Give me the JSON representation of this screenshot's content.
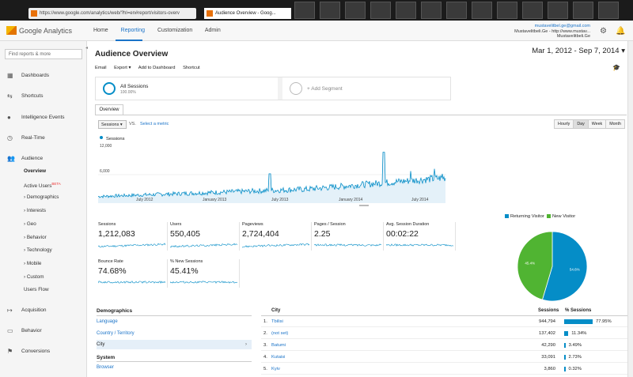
{
  "browser": {
    "url": "https://www.google.com/analytics/web/?hl=en#report/visitors-overv",
    "tab_title": "Audience Overview - Goog...",
    "favicon_color": "#e8710a"
  },
  "header": {
    "logo": "Google Analytics",
    "nav": [
      "Home",
      "Reporting",
      "Customization",
      "Admin"
    ],
    "active_nav": "Reporting",
    "account_email": "mustavelitbel.ge@gmail.com",
    "account_site": "Mustavelitbeli.Ge - http://www.mustav...",
    "account_view": "Mustavelitbeli.Ge",
    "icons": [
      "gear-icon",
      "bell-icon"
    ]
  },
  "sidebar": {
    "search_placeholder": "Find reports & more",
    "items": [
      {
        "label": "Dashboards",
        "icon": "grid-icon"
      },
      {
        "label": "Shortcuts",
        "icon": "arrows-icon"
      },
      {
        "label": "Intelligence Events",
        "icon": "bulb-icon"
      },
      {
        "label": "Real-Time",
        "icon": "clock-icon"
      },
      {
        "label": "Audience",
        "icon": "people-icon"
      }
    ],
    "audience_sub": [
      {
        "label": "Overview"
      },
      {
        "label": "Active Users",
        "badge": "BETA"
      },
      {
        "label": "› Demographics"
      },
      {
        "label": "› Interests"
      },
      {
        "label": "› Geo"
      },
      {
        "label": "› Behavior"
      },
      {
        "label": "› Technology"
      },
      {
        "label": "› Mobile"
      },
      {
        "label": "› Custom"
      },
      {
        "label": "Users Flow"
      }
    ],
    "bottom_items": [
      {
        "label": "Acquisition",
        "icon": "acquisition-icon"
      },
      {
        "label": "Behavior",
        "icon": "behavior-icon"
      },
      {
        "label": "Conversions",
        "icon": "flag-icon"
      }
    ]
  },
  "main": {
    "title": "Audience Overview",
    "date_range": "Mar 1, 2012 - Sep 7, 2014",
    "actions": [
      "Email",
      "Export ▾",
      "Add to Dashboard",
      "Shortcut"
    ],
    "segments": {
      "primary_label": "All Sessions",
      "primary_sub": "100.00%",
      "add_label": "+ Add Segment"
    },
    "tab": "Overview",
    "metric_select": "Sessions ▾",
    "vs_label": "VS.",
    "select_metric": "Select a metric",
    "granularity": [
      "Hourly",
      "Day",
      "Week",
      "Month"
    ],
    "granularity_active": "Day"
  },
  "chart_data": {
    "type": "line",
    "series": [
      {
        "name": "Sessions"
      }
    ],
    "y_ticks": [
      "12,000",
      "6,000"
    ],
    "ylim": [
      0,
      12000
    ],
    "x_ticks": [
      "July 2012",
      "January 2013",
      "July 2013",
      "January 2014",
      "July 2014"
    ],
    "color": "#058dc7"
  },
  "scorecards": [
    {
      "label": "Sessions",
      "value": "1,212,083"
    },
    {
      "label": "Users",
      "value": "550,405"
    },
    {
      "label": "Pageviews",
      "value": "2,724,404"
    },
    {
      "label": "Pages / Session",
      "value": "2.25"
    },
    {
      "label": "Avg. Session Duration",
      "value": "00:02:22"
    },
    {
      "label": "Bounce Rate",
      "value": "74.68%"
    },
    {
      "label": "% New Sessions",
      "value": "45.41%"
    }
  ],
  "pie": {
    "legend": [
      {
        "label": "Returning Visitor",
        "color": "#058dc7"
      },
      {
        "label": "New Visitor",
        "color": "#50b432"
      }
    ],
    "slices": [
      {
        "label": "Returning Visitor",
        "value": 54.6,
        "text": "54.6%"
      },
      {
        "label": "New Visitor",
        "value": 45.4,
        "text": "45.4%"
      }
    ]
  },
  "demographics": {
    "title": "Demographics",
    "rows": [
      "Language",
      "Country / Territory",
      "City"
    ],
    "selected": "City",
    "system_title": "System",
    "system_rows": [
      "Browser"
    ]
  },
  "city_table": {
    "headers": [
      "City",
      "Sessions",
      "% Sessions"
    ],
    "rows": [
      {
        "n": "1.",
        "city": "Tbilisi",
        "sessions": "944,794",
        "pct": "77.95%",
        "share": 77.95
      },
      {
        "n": "2.",
        "city": "(not set)",
        "sessions": "137,402",
        "pct": "11.34%",
        "share": 11.34
      },
      {
        "n": "3.",
        "city": "Batumi",
        "sessions": "42,290",
        "pct": "3.49%",
        "share": 3.49
      },
      {
        "n": "4.",
        "city": "Kutaisi",
        "sessions": "33,091",
        "pct": "2.73%",
        "share": 2.73
      },
      {
        "n": "5.",
        "city": "Kyiv",
        "sessions": "3,860",
        "pct": "0.32%",
        "share": 0.32
      }
    ]
  }
}
